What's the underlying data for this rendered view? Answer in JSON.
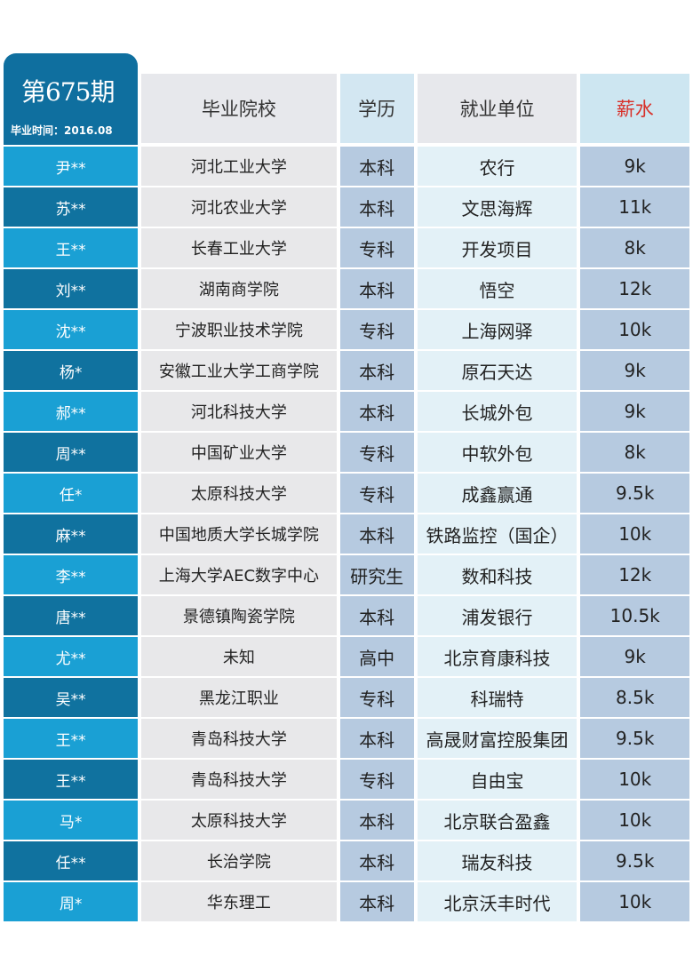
{
  "header": {
    "issue": "第675期",
    "graduation": "毕业时间：2016.08",
    "columns": {
      "school": "毕业院校",
      "degree": "学历",
      "company": "就业单位",
      "salary": "薪水"
    }
  },
  "colors": {
    "badge": "#0f6f9f",
    "name_light": "#1aa0d4",
    "name_dark": "#10729f",
    "salary_header": "#d8312a"
  },
  "rows": [
    {
      "name": "尹**",
      "school": "河北工业大学",
      "degree": "本科",
      "company": "农行",
      "salary": "9k"
    },
    {
      "name": "苏**",
      "school": "河北农业大学",
      "degree": "本科",
      "company": "文思海辉",
      "salary": "11k"
    },
    {
      "name": "王**",
      "school": "长春工业大学",
      "degree": "专科",
      "company": "开发项目",
      "salary": "8k"
    },
    {
      "name": "刘**",
      "school": "湖南商学院",
      "degree": "本科",
      "company": "悟空",
      "salary": "12k"
    },
    {
      "name": "沈**",
      "school": "宁波职业技术学院",
      "degree": "专科",
      "company": "上海网驿",
      "salary": "10k"
    },
    {
      "name": "杨*",
      "school": "安徽工业大学工商学院",
      "degree": "本科",
      "company": "原石天达",
      "salary": "9k"
    },
    {
      "name": "郝**",
      "school": "河北科技大学",
      "degree": "本科",
      "company": "长城外包",
      "salary": "9k"
    },
    {
      "name": "周**",
      "school": "中国矿业大学",
      "degree": "专科",
      "company": "中软外包",
      "salary": "8k"
    },
    {
      "name": "任*",
      "school": "太原科技大学",
      "degree": "专科",
      "company": "成鑫赢通",
      "salary": "9.5k"
    },
    {
      "name": "麻**",
      "school": "中国地质大学长城学院",
      "degree": "本科",
      "company": "铁路监控（国企）",
      "salary": "10k"
    },
    {
      "name": "李**",
      "school": "上海大学AEC数字中心",
      "degree": "研究生",
      "company": "数和科技",
      "salary": "12k"
    },
    {
      "name": "唐**",
      "school": "景德镇陶瓷学院",
      "degree": "本科",
      "company": "浦发银行",
      "salary": "10.5k"
    },
    {
      "name": "尤**",
      "school": "未知",
      "degree": "高中",
      "company": "北京育康科技",
      "salary": "9k"
    },
    {
      "name": "吴**",
      "school": "黑龙江职业",
      "degree": "专科",
      "company": "科瑞特",
      "salary": "8.5k"
    },
    {
      "name": "王**",
      "school": "青岛科技大学",
      "degree": "本科",
      "company": "高晟财富控股集团",
      "salary": "9.5k"
    },
    {
      "name": "王**",
      "school": "青岛科技大学",
      "degree": "专科",
      "company": "自由宝",
      "salary": "10k"
    },
    {
      "name": "马*",
      "school": "太原科技大学",
      "degree": "本科",
      "company": "北京联合盈鑫",
      "salary": "10k"
    },
    {
      "name": "任**",
      "school": "长治学院",
      "degree": "本科",
      "company": "瑞友科技",
      "salary": "9.5k"
    },
    {
      "name": "周*",
      "school": "华东理工",
      "degree": "本科",
      "company": "北京沃丰时代",
      "salary": "10k"
    }
  ]
}
